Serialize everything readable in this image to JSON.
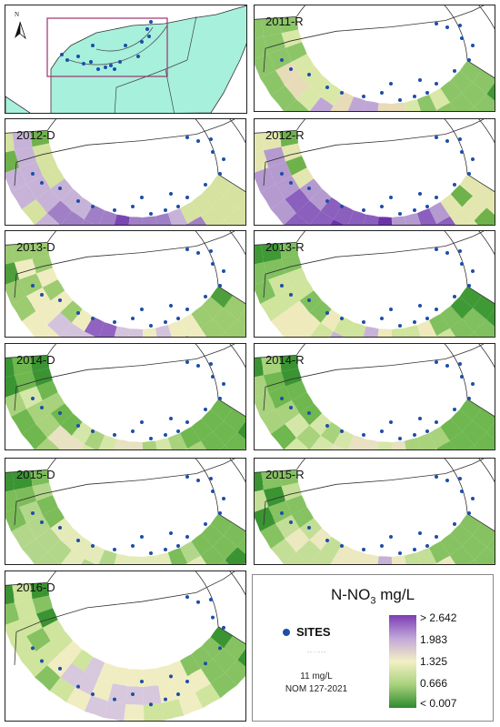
{
  "inset": {
    "north_label": "N",
    "land_color": "#a6f0dc",
    "box_color": "#a03070"
  },
  "panels": [
    {
      "id": "2011-R",
      "label": "2011-R"
    },
    {
      "id": "2012-D",
      "label": "2012-D"
    },
    {
      "id": "2012-R",
      "label": "2012-R"
    },
    {
      "id": "2013-D",
      "label": "2013-D"
    },
    {
      "id": "2013-R",
      "label": "2013-R"
    },
    {
      "id": "2014-D",
      "label": "2014-D"
    },
    {
      "id": "2014-R",
      "label": "2014-R"
    },
    {
      "id": "2015-D",
      "label": "2015-D"
    },
    {
      "id": "2015-R",
      "label": "2015-R"
    },
    {
      "id": "2016-D",
      "label": "2016-D"
    }
  ],
  "legend": {
    "title_main": "N-NO",
    "title_sub": "3",
    "title_unit": " mg/L",
    "sites_label": "SITES",
    "nom_line1": "11 mg/L",
    "nom_line2": "NOM 127-2021",
    "ramp_labels": [
      "> 2.642",
      "1.983",
      "1.325",
      "0.666",
      "< 0.007"
    ],
    "site_color": "#1f4ea8"
  }
}
